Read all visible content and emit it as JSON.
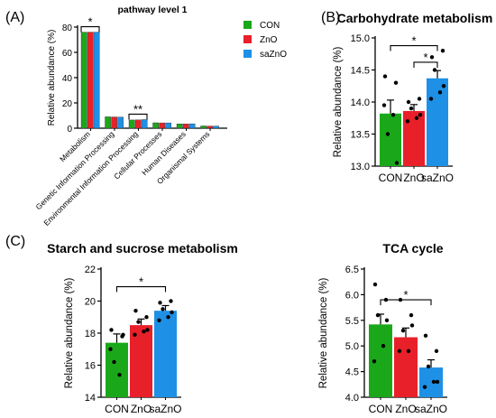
{
  "colors": {
    "CON": "#1aa81a",
    "ZnO": "#e8202a",
    "saZnO": "#1e90e6",
    "axis": "#000000"
  },
  "chart_data": [
    {
      "id": "A",
      "panel_label": "(A)",
      "type": "bar",
      "title": "pathway level 1",
      "xlabel": "",
      "ylabel": "Relative abundance (%)",
      "ylim": [
        0,
        80
      ],
      "yticks": [
        0,
        20,
        40,
        60,
        80
      ],
      "categories": [
        "Metabolism",
        "Genetic Information Processing",
        "Environmental Information Processing",
        "Cellular Processes",
        "Human Diseases",
        "Organismal Systems"
      ],
      "series": [
        {
          "name": "CON",
          "values": [
            76,
            9.0,
            6.5,
            4.3,
            3.4,
            1.8
          ]
        },
        {
          "name": "ZnO",
          "values": [
            76,
            8.9,
            6.6,
            4.2,
            3.4,
            1.7
          ]
        },
        {
          "name": "saZnO",
          "values": [
            76,
            8.8,
            6.8,
            4.2,
            3.5,
            1.7
          ]
        }
      ],
      "legend": {
        "position": "right",
        "entries": [
          "CON",
          "ZnO",
          "saZnO"
        ]
      },
      "annotations": [
        {
          "text": "*",
          "category": 0
        },
        {
          "text": "**",
          "category": 2
        }
      ]
    },
    {
      "id": "B",
      "panel_label": "(B)",
      "type": "bar",
      "title": "Carbohydrate metabolism",
      "xlabel": "",
      "ylabel": "Relative abundance (%)",
      "ylim": [
        13.0,
        15.0
      ],
      "yticks": [
        13.0,
        13.5,
        14.0,
        14.5,
        15.0
      ],
      "tick_decimals": 1,
      "categories": [
        "CON",
        "ZnO",
        "saZnO"
      ],
      "values": [
        13.82,
        13.86,
        14.37
      ],
      "errors": [
        0.21,
        0.1,
        0.12
      ],
      "points": [
        [
          14.4,
          14.3,
          13.5,
          13.8,
          13.95,
          13.05
        ],
        [
          14.0,
          14.05,
          13.9,
          13.75,
          13.7,
          13.8
        ],
        [
          14.7,
          14.8,
          14.5,
          14.15,
          14.05,
          14.25
        ]
      ],
      "annotations": [
        {
          "text": "*",
          "from": 0,
          "to": 2,
          "y": 14.88
        },
        {
          "text": "*",
          "from": 1,
          "to": 2,
          "y": 14.62
        }
      ]
    },
    {
      "id": "C1",
      "panel_label": "(C)",
      "type": "bar",
      "title": "Starch and sucrose metabolism",
      "xlabel": "",
      "ylabel": "Relative abundance (%)",
      "ylim": [
        14,
        22
      ],
      "yticks": [
        14,
        16,
        18,
        20,
        22
      ],
      "tick_decimals": 0,
      "categories": [
        "CON",
        "ZnO",
        "saZnO"
      ],
      "values": [
        17.4,
        18.5,
        19.4
      ],
      "errors": [
        0.55,
        0.38,
        0.32
      ],
      "points": [
        [
          18.2,
          17.8,
          16.2,
          15.4,
          17.0,
          17.9
        ],
        [
          19.4,
          19.0,
          18.7,
          18.1,
          17.9,
          18.2
        ],
        [
          19.9,
          20.0,
          19.5,
          19.0,
          18.8,
          19.3
        ]
      ],
      "annotations": [
        {
          "text": "*",
          "from": 0,
          "to": 2,
          "y": 20.9
        }
      ]
    },
    {
      "id": "C2",
      "panel_label": "",
      "type": "bar",
      "title": "TCA cycle",
      "xlabel": "",
      "ylabel": "Relative abundance (%)",
      "ylim": [
        4.0,
        6.5
      ],
      "yticks": [
        4.0,
        4.5,
        5.0,
        5.5,
        6.0,
        6.5
      ],
      "tick_decimals": 1,
      "categories": [
        "CON",
        "ZnO",
        "saZnO"
      ],
      "values": [
        5.42,
        5.17,
        4.58
      ],
      "errors": [
        0.2,
        0.18,
        0.15
      ],
      "points": [
        [
          6.2,
          5.9,
          5.6,
          5.0,
          4.7,
          5.5
        ],
        [
          5.9,
          5.6,
          5.3,
          4.9,
          4.9,
          5.4
        ],
        [
          5.2,
          4.9,
          4.6,
          4.3,
          4.2,
          4.3
        ]
      ],
      "annotations": [
        {
          "text": "*",
          "from": 0,
          "to": 2,
          "y": 5.9
        }
      ]
    }
  ]
}
